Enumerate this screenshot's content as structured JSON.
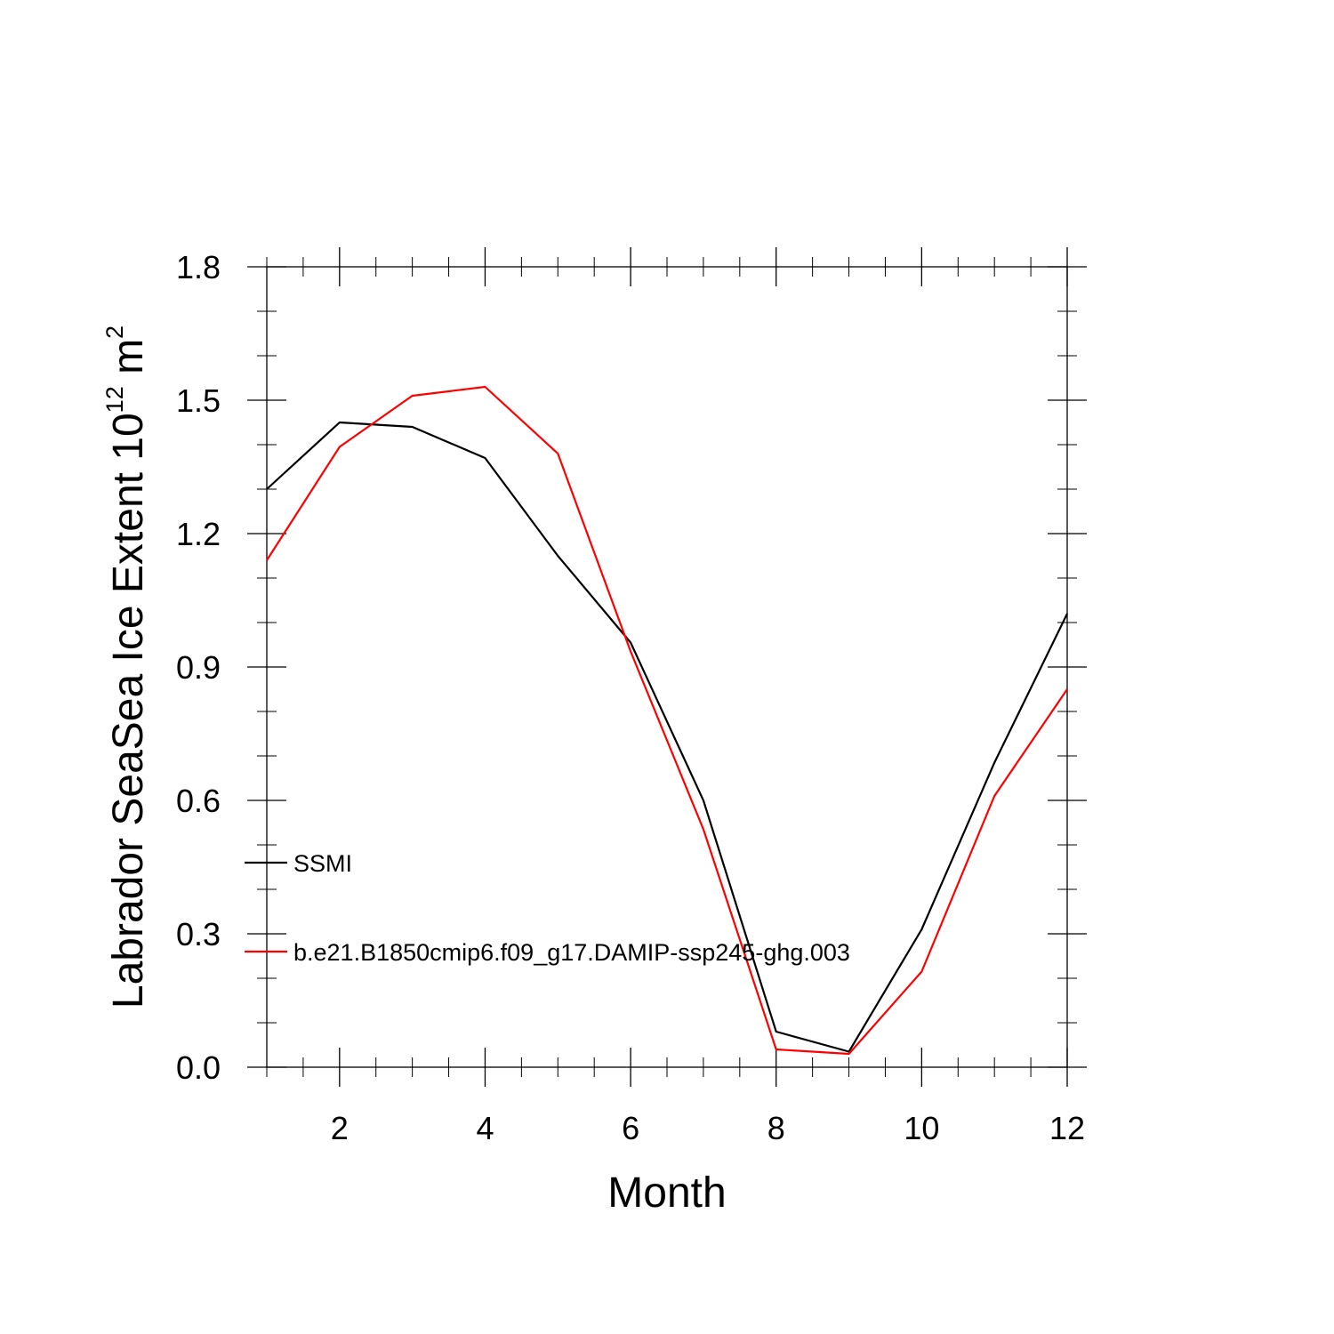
{
  "chart_data": {
    "type": "line",
    "title": "",
    "xlabel": "Month",
    "ylabel": {
      "prefix": "Labrador SeaSea Ice Extent 10",
      "superscript": "12",
      "mid": " m",
      "superscript2": "2"
    },
    "xlim": [
      1,
      12
    ],
    "ylim": [
      0.0,
      1.8
    ],
    "x_major_ticks": [
      2,
      4,
      6,
      8,
      10,
      12
    ],
    "x_tick_labels": [
      "2",
      "4",
      "6",
      "8",
      "10",
      "12"
    ],
    "x_minor_step": 0.5,
    "y_major_ticks": [
      0.0,
      0.3,
      0.6,
      0.9,
      1.2,
      1.5,
      1.8
    ],
    "y_tick_labels": [
      "0.0",
      "0.3",
      "0.6",
      "0.9",
      "1.2",
      "1.5",
      "1.8"
    ],
    "y_minor_step": 0.1,
    "grid": false,
    "legend_position": "bottom-left, inside plot",
    "x": [
      1,
      2,
      3,
      4,
      5,
      6,
      7,
      8,
      9,
      10,
      11,
      12
    ],
    "series": [
      {
        "name": "SSMI",
        "color": "#000000",
        "values": [
          1.3,
          1.45,
          1.44,
          1.37,
          1.15,
          0.955,
          0.6,
          0.08,
          0.035,
          0.31,
          0.685,
          1.02
        ]
      },
      {
        "name": "b.e21.B1850cmip6.f09_g17.DAMIP-ssp245-ghg.003",
        "color": "#ff0000",
        "values": [
          1.14,
          1.395,
          1.51,
          1.53,
          1.38,
          0.935,
          0.535,
          0.04,
          0.03,
          0.215,
          0.61,
          0.85
        ]
      }
    ]
  }
}
